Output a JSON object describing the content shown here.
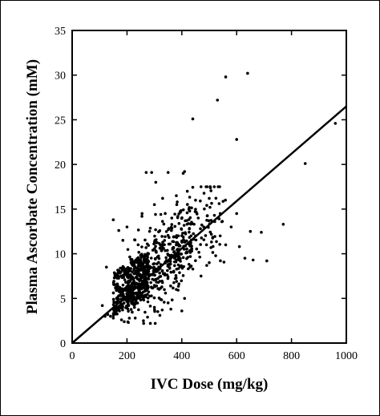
{
  "chart_data": {
    "type": "scatter",
    "title": "",
    "xlabel": "IVC Dose (mg/kg)",
    "ylabel": "Plasma Ascorbate Concentration (mM)",
    "xlim": [
      0,
      1000
    ],
    "ylim": [
      0,
      35
    ],
    "xticks": [
      "0",
      "200",
      "400",
      "600",
      "800",
      "1000"
    ],
    "yticks": [
      "0",
      "5",
      "10",
      "15",
      "20",
      "25",
      "30",
      "35"
    ],
    "grid": false,
    "legend": "none",
    "colors": {
      "points": "#000000",
      "line": "#000000",
      "frame": "#000000"
    },
    "series": [
      {
        "kind": "points",
        "points": [
          [
            560,
            29.8
          ],
          [
            640,
            30.2
          ],
          [
            530,
            27.2
          ],
          [
            440,
            25.1
          ],
          [
            600,
            22.8
          ],
          [
            960,
            24.6
          ],
          [
            850,
            20.1
          ],
          [
            270,
            19.1
          ],
          [
            290,
            19.1
          ],
          [
            350,
            19.1
          ],
          [
            405,
            19.0
          ],
          [
            410,
            19.2
          ],
          [
            305,
            18.0
          ],
          [
            770,
            13.3
          ],
          [
            650,
            12.5
          ],
          [
            690,
            12.4
          ],
          [
            660,
            9.3
          ],
          [
            710,
            9.2
          ],
          [
            600,
            14.5
          ],
          [
            630,
            9.5
          ],
          [
            560,
            11.0
          ],
          [
            580,
            13.0
          ],
          [
            610,
            10.8
          ],
          [
            540,
            12.0
          ],
          [
            120,
            3.0
          ],
          [
            130,
            3.2
          ],
          [
            140,
            3.0
          ],
          [
            150,
            2.8
          ],
          [
            160,
            3.5
          ],
          [
            180,
            2.6
          ],
          [
            190,
            2.4
          ],
          [
            205,
            2.3
          ],
          [
            230,
            2.8
          ],
          [
            260,
            2.5
          ],
          [
            275,
            2.9
          ],
          [
            320,
            3.1
          ],
          [
            360,
            3.8
          ],
          [
            400,
            3.6
          ],
          [
            110,
            4.2
          ],
          [
            125,
            8.5
          ],
          [
            150,
            13.8
          ],
          [
            170,
            12.6
          ],
          [
            185,
            11.5
          ],
          [
            200,
            13.0
          ],
          [
            255,
            14.5
          ],
          [
            300,
            15.5
          ],
          [
            330,
            16.2
          ],
          [
            380,
            16.5
          ],
          [
            420,
            17.0
          ],
          [
            450,
            16.0
          ],
          [
            470,
            17.5
          ],
          [
            500,
            16.2
          ],
          [
            460,
            14.0
          ],
          [
            480,
            13.0
          ],
          [
            520,
            13.6
          ],
          [
            540,
            14.5
          ],
          [
            490,
            11.0
          ],
          [
            450,
            12.0
          ],
          [
            430,
            8.5
          ],
          [
            500,
            9.0
          ],
          [
            470,
            7.5
          ],
          [
            380,
            6.0
          ],
          [
            410,
            5.0
          ],
          [
            350,
            4.5
          ],
          [
            300,
            4.0
          ]
        ]
      },
      {
        "kind": "regression_line",
        "from": [
          0,
          0
        ],
        "to": [
          1000,
          26.5
        ]
      }
    ]
  }
}
